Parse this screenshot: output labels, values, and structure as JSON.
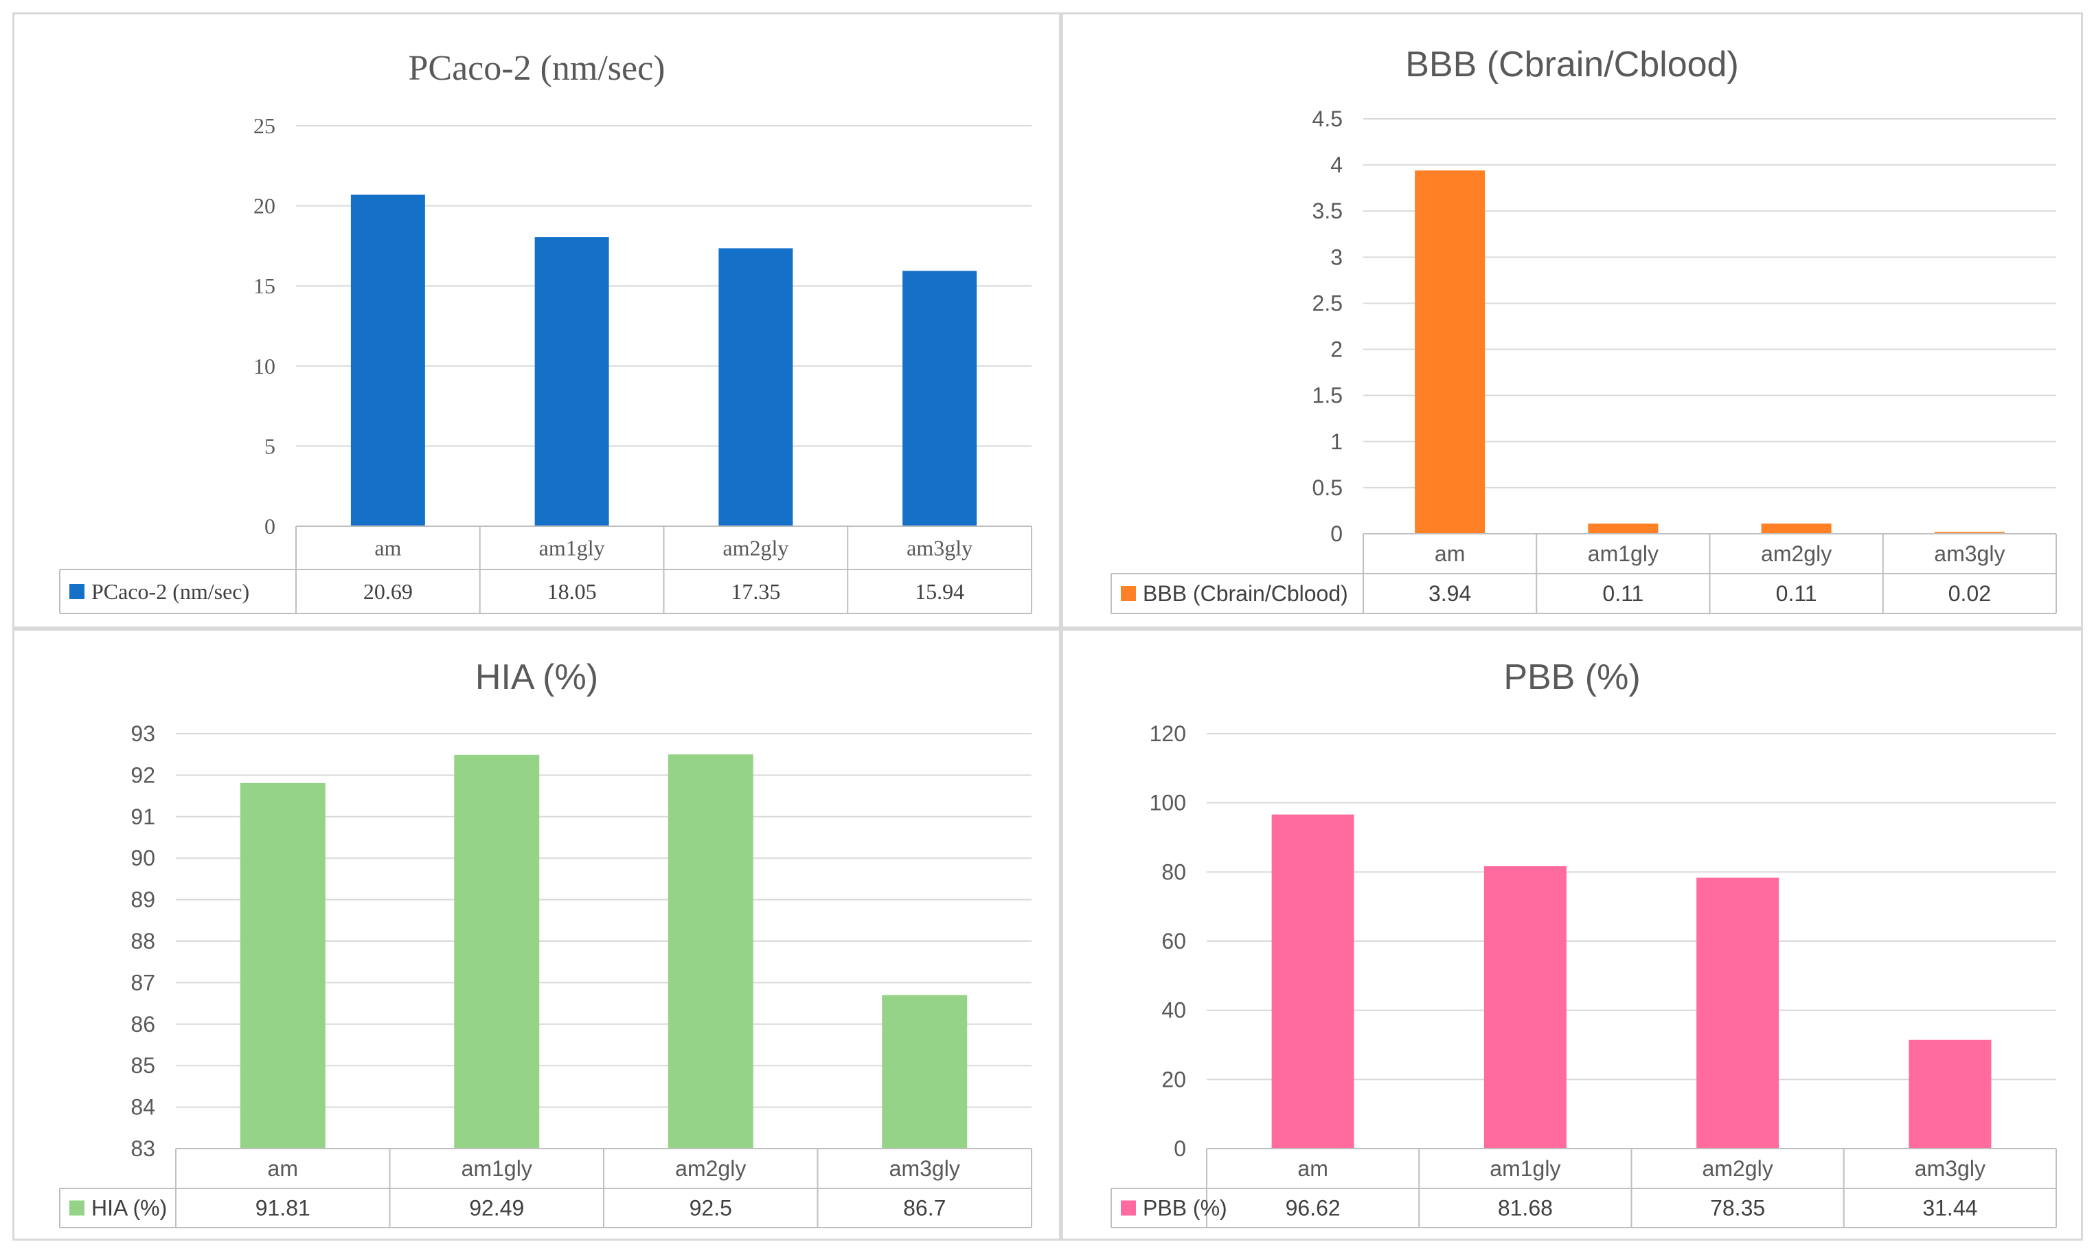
{
  "chart_data": [
    {
      "type": "bar",
      "title": "PCaco-2 (nm/sec)",
      "series_name": "PCaco-2 (nm/sec)",
      "categories": [
        "am",
        "am1gly",
        "am2gly",
        "am3gly"
      ],
      "values": [
        20.69,
        18.05,
        17.35,
        15.94
      ],
      "value_labels": [
        "20.69",
        "18.05",
        "17.35",
        "15.94"
      ],
      "ylim": [
        0,
        25
      ],
      "yticks": [
        "0",
        "5",
        "10",
        "15",
        "20",
        "25"
      ],
      "color": "#1570c8",
      "legend": "data-table",
      "grid": true
    },
    {
      "type": "bar",
      "title": "BBB (Cbrain/Cblood)",
      "series_name": "BBB (Cbrain/Cblood)",
      "categories": [
        "am",
        "am1gly",
        "am2gly",
        "am3gly"
      ],
      "values": [
        3.94,
        0.11,
        0.11,
        0.02
      ],
      "value_labels": [
        "3.94",
        "0.11",
        "0.11",
        "0.02"
      ],
      "ylim": [
        0,
        4.5
      ],
      "yticks": [
        "0",
        "0.5",
        "1",
        "1.5",
        "2",
        "2.5",
        "3",
        "3.5",
        "4",
        "4.5"
      ],
      "color": "#ff8025",
      "legend": "data-table",
      "grid": true
    },
    {
      "type": "bar",
      "title": "HIA (%)",
      "series_name": "HIA (%)",
      "categories": [
        "am",
        "am1gly",
        "am2gly",
        "am3gly"
      ],
      "values": [
        91.81,
        92.49,
        92.5,
        86.7
      ],
      "value_labels": [
        "91.81",
        "92.49",
        "92.5",
        "86.7"
      ],
      "ylim": [
        83,
        93
      ],
      "yticks": [
        "83",
        "84",
        "85",
        "86",
        "87",
        "88",
        "89",
        "90",
        "91",
        "92",
        "93"
      ],
      "color": "#95d486",
      "legend": "data-table",
      "grid": true
    },
    {
      "type": "bar",
      "title": "PBB (%)",
      "series_name": "PBB (%)",
      "categories": [
        "am",
        "am1gly",
        "am2gly",
        "am3gly"
      ],
      "values": [
        96.62,
        81.68,
        78.35,
        31.44
      ],
      "value_labels": [
        "96.62",
        "81.68",
        "78.35",
        "31.44"
      ],
      "ylim": [
        0,
        120
      ],
      "yticks": [
        "0",
        "20",
        "40",
        "60",
        "80",
        "100",
        "120"
      ],
      "color": "#ff6b9e",
      "legend": "data-table",
      "grid": true
    }
  ]
}
